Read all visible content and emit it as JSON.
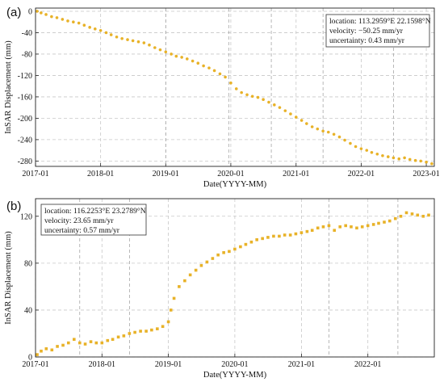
{
  "figure": {
    "panel_a_label": "(a)",
    "panel_b_label": "(b)"
  },
  "chart_data": [
    {
      "type": "scatter",
      "panel": "(a)",
      "xlabel": "Date(YYYY-MM)",
      "ylabel": "InSAR Displacement (mm)",
      "x_ticks": [
        "2017-01",
        "2018-01",
        "2019-01",
        "2020-01",
        "2021-01",
        "2022-01",
        "2023-01"
      ],
      "y_ticks": [
        0,
        -40,
        -80,
        -120,
        -160,
        -200,
        -240,
        -280
      ],
      "xlim": [
        "2017-01-01",
        "2023-02-15"
      ],
      "ylim": [
        -290,
        6
      ],
      "grid": true,
      "marker_color": "#E8B228",
      "annotation": {
        "location": "location: 113.2959°E  22.1598°N",
        "velocity": "velocity: −50.25 mm/yr",
        "uncertainty": "uncertainty: 0.43 mm/yr",
        "placement": "top-right"
      },
      "vertical_dashed_dates": [
        "2019-01-01",
        "2019-12-20",
        "2020-08-15",
        "2021-06-01",
        "2022-07-01"
      ],
      "series": [
        {
          "marker": "circle",
          "x": [
            "2017-01-10",
            "2017-02-01",
            "2017-03-01",
            "2017-04-01",
            "2017-05-01",
            "2017-06-01",
            "2017-07-01",
            "2017-08-01",
            "2017-09-01",
            "2017-10-01",
            "2017-11-01",
            "2017-12-01",
            "2018-01-01",
            "2018-02-01",
            "2018-03-01",
            "2018-04-01",
            "2018-05-01",
            "2018-06-01",
            "2018-07-01",
            "2018-08-01",
            "2018-09-01",
            "2018-10-01",
            "2018-11-01",
            "2018-12-01",
            "2019-01-01",
            "2019-02-01",
            "2019-03-01",
            "2019-04-01",
            "2019-05-01",
            "2019-06-01",
            "2019-07-01",
            "2019-08-01",
            "2019-09-01",
            "2019-10-01",
            "2019-11-01",
            "2019-12-01",
            "2020-01-01",
            "2020-02-01",
            "2020-03-01",
            "2020-04-01",
            "2020-05-01",
            "2020-06-01",
            "2020-07-01",
            "2020-08-01",
            "2020-09-01",
            "2020-10-01",
            "2020-11-01",
            "2020-12-01",
            "2021-01-01",
            "2021-02-01",
            "2021-03-01",
            "2021-04-01",
            "2021-05-01",
            "2021-06-01",
            "2021-07-01",
            "2021-08-01",
            "2021-09-01",
            "2021-10-01",
            "2021-11-01",
            "2021-12-01",
            "2022-01-01",
            "2022-02-01",
            "2022-03-01",
            "2022-04-01",
            "2022-05-01",
            "2022-06-01",
            "2022-07-01",
            "2022-08-01",
            "2022-09-01",
            "2022-10-01",
            "2022-11-01",
            "2022-12-01",
            "2023-01-01",
            "2023-02-01"
          ],
          "y": [
            0,
            -3,
            -6,
            -10,
            -12,
            -15,
            -18,
            -20,
            -22,
            -26,
            -30,
            -33,
            -36,
            -40,
            -44,
            -48,
            -51,
            -53,
            -55,
            -57,
            -59,
            -63,
            -68,
            -72,
            -76,
            -80,
            -84,
            -86,
            -89,
            -93,
            -97,
            -102,
            -106,
            -111,
            -117,
            -123,
            -134,
            -145,
            -152,
            -156,
            -159,
            -161,
            -165,
            -170,
            -175,
            -180,
            -186,
            -192,
            -198,
            -204,
            -210,
            -216,
            -220,
            -224,
            -226,
            -230,
            -235,
            -241,
            -247,
            -253,
            -257,
            -260,
            -264,
            -267,
            -270,
            -272,
            -274,
            -276,
            -274,
            -277,
            -279,
            -280,
            -282,
            -285
          ]
        }
      ]
    },
    {
      "type": "scatter",
      "panel": "(b)",
      "xlabel": "Date(YYYY-MM)",
      "ylabel": "InSAR Displacement (mm)",
      "x_ticks": [
        "2017-01",
        "2018-01",
        "2019-01",
        "2020-01",
        "2021-01",
        "2022-01"
      ],
      "y_ticks": [
        0,
        40,
        80,
        120
      ],
      "xlim": [
        "2017-01-01",
        "2023-01-01"
      ],
      "ylim": [
        0,
        135
      ],
      "grid": true,
      "marker_color": "#E8B228",
      "annotation": {
        "location": "location: 116.2253°E  23.2789°N",
        "velocity": "velocity: 23.65 mm/yr",
        "uncertainty": "uncertainty: 0.57 mm/yr",
        "placement": "top-left"
      },
      "vertical_dashed_dates": [
        "2017-09-01",
        "2018-06-01",
        "2021-06-01",
        "2022-06-15"
      ],
      "series": [
        {
          "marker": "square",
          "x": [
            "2017-01-10",
            "2017-02-01",
            "2017-03-01",
            "2017-04-01",
            "2017-05-01",
            "2017-06-01",
            "2017-07-01",
            "2017-08-01",
            "2017-09-01",
            "2017-10-01",
            "2017-11-01",
            "2017-12-01",
            "2018-01-01",
            "2018-02-01",
            "2018-03-01",
            "2018-04-01",
            "2018-05-01",
            "2018-06-01",
            "2018-07-01",
            "2018-08-01",
            "2018-09-01",
            "2018-10-01",
            "2018-11-01",
            "2018-12-01",
            "2019-01-01",
            "2019-01-15",
            "2019-02-01",
            "2019-03-01",
            "2019-04-01",
            "2019-05-01",
            "2019-06-01",
            "2019-07-01",
            "2019-08-01",
            "2019-09-01",
            "2019-10-01",
            "2019-11-01",
            "2019-12-01",
            "2020-01-01",
            "2020-02-01",
            "2020-03-01",
            "2020-04-01",
            "2020-05-01",
            "2020-06-01",
            "2020-07-01",
            "2020-08-01",
            "2020-09-01",
            "2020-10-01",
            "2020-11-01",
            "2020-12-01",
            "2021-01-01",
            "2021-02-01",
            "2021-03-01",
            "2021-04-01",
            "2021-05-01",
            "2021-06-01",
            "2021-07-01",
            "2021-08-01",
            "2021-09-01",
            "2021-10-01",
            "2021-11-01",
            "2021-12-01",
            "2022-01-01",
            "2022-02-01",
            "2022-03-01",
            "2022-04-01",
            "2022-05-01",
            "2022-06-01",
            "2022-07-01",
            "2022-08-01",
            "2022-09-01",
            "2022-10-01",
            "2022-11-01",
            "2022-12-01"
          ],
          "y": [
            2,
            5,
            7,
            6,
            9,
            10,
            12,
            15,
            12,
            11,
            13,
            12,
            12,
            14,
            15,
            17,
            18,
            20,
            21,
            22,
            22,
            23,
            24,
            26,
            30,
            40,
            50,
            60,
            65,
            70,
            74,
            78,
            81,
            84,
            87,
            89,
            90,
            92,
            94,
            96,
            98,
            100,
            101,
            102,
            103,
            103,
            104,
            104,
            105,
            106,
            107,
            108,
            110,
            111,
            112,
            108,
            111,
            112,
            111,
            110,
            111,
            112,
            113,
            114,
            115,
            116,
            118,
            120,
            123,
            122,
            121,
            120,
            121
          ]
        }
      ]
    }
  ]
}
